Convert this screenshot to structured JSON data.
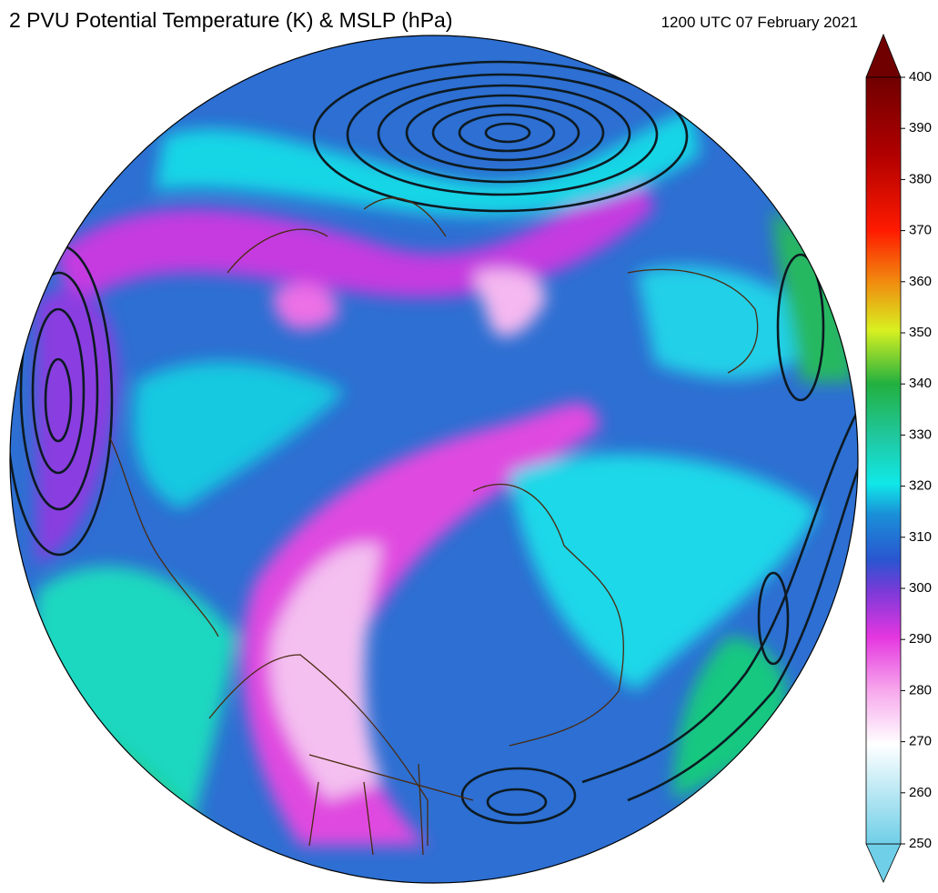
{
  "header": {
    "title": "2 PVU Potential Temperature (K) & MSLP (hPa)",
    "timestamp": "1200 UTC 07 February 2021"
  },
  "colorbar": {
    "ticks": [
      250,
      260,
      270,
      280,
      290,
      300,
      310,
      320,
      330,
      340,
      350,
      360,
      370,
      380,
      390,
      400
    ]
  }
}
